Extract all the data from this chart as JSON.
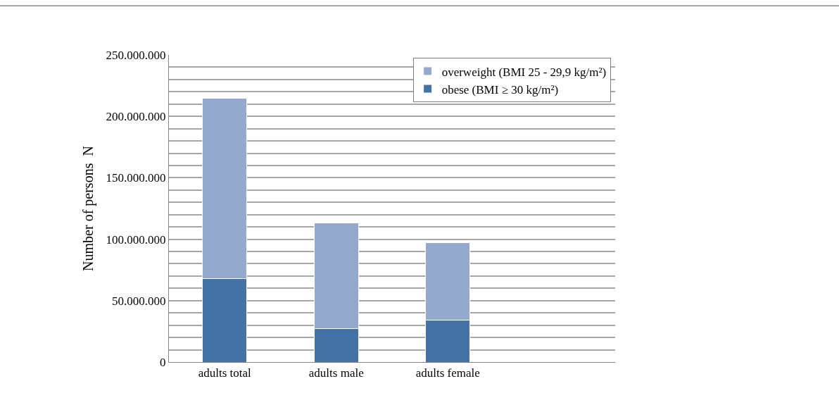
{
  "chart_data": {
    "type": "bar",
    "stacked": true,
    "ylabel": "Number of persons  N",
    "categories": [
      "adults total",
      "adults male",
      "adults female",
      null
    ],
    "series": [
      {
        "name": "obese (BMI ≥ 30 kg/m²)",
        "color": "#4472a4",
        "values": [
          68000000,
          27000000,
          34000000,
          null
        ]
      },
      {
        "name": "overweight (BMI 25 - 29,9 kg/m²)",
        "color": "#95a9cf",
        "values": [
          147000000,
          86000000,
          63000000,
          null
        ]
      }
    ],
    "ylim": [
      0,
      250000000
    ],
    "yticks": [
      {
        "value": 0,
        "label": "0"
      },
      {
        "value": 10000000,
        "label": null
      },
      {
        "value": 20000000,
        "label": null
      },
      {
        "value": 30000000,
        "label": null
      },
      {
        "value": 40000000,
        "label": null
      },
      {
        "value": 50000000,
        "label": "50.000.000"
      },
      {
        "value": 60000000,
        "label": null
      },
      {
        "value": 70000000,
        "label": null
      },
      {
        "value": 80000000,
        "label": null
      },
      {
        "value": 90000000,
        "label": null
      },
      {
        "value": 100000000,
        "label": "100.000.000"
      },
      {
        "value": 110000000,
        "label": null
      },
      {
        "value": 120000000,
        "label": null
      },
      {
        "value": 130000000,
        "label": null
      },
      {
        "value": 140000000,
        "label": null
      },
      {
        "value": 150000000,
        "label": "150.000.000"
      },
      {
        "value": 160000000,
        "label": null
      },
      {
        "value": 170000000,
        "label": null
      },
      {
        "value": 180000000,
        "label": null
      },
      {
        "value": 190000000,
        "label": null
      },
      {
        "value": 200000000,
        "label": "200.000.000"
      },
      {
        "value": 210000000,
        "label": null
      },
      {
        "value": 220000000,
        "label": null
      },
      {
        "value": 230000000,
        "label": null
      },
      {
        "value": 240000000,
        "label": null
      },
      {
        "value": 250000000,
        "label": "250.000.000"
      }
    ],
    "grid": "y",
    "legend": "top right"
  }
}
